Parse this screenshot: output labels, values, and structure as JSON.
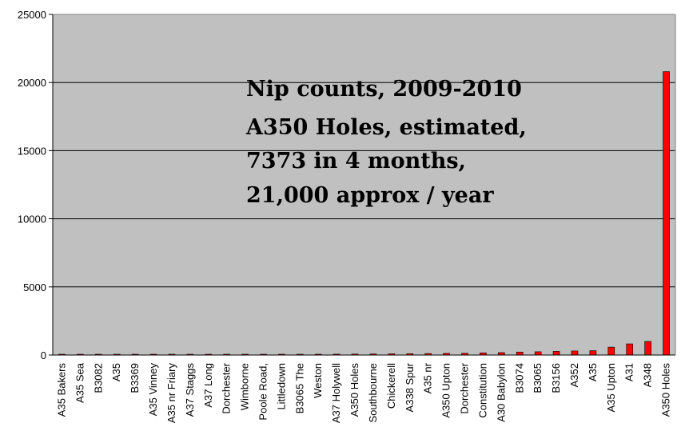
{
  "chart_data": {
    "type": "bar",
    "title": "",
    "xlabel": "",
    "ylabel": "",
    "ylim": [
      0,
      25000
    ],
    "yticks": [
      0,
      5000,
      10000,
      15000,
      20000,
      25000
    ],
    "grid": true,
    "legend": "none",
    "plot_background": "#c0c0c0",
    "bar_color": "#ff0000",
    "categories": [
      "A35 Bakers",
      "A35 Sea",
      "B3082",
      "A35",
      "B3369",
      "A35 Vinney",
      "A35 nr Friary",
      "A37 Staggs",
      "A37 Long",
      "Dorchester",
      "Wimborne",
      "Poole Road,",
      "Littledown",
      "B3065 The",
      "Weston",
      "A37 Holywell",
      "A350 Holes",
      "Southbourne",
      "Chickerell",
      "A338 Spur",
      "A35 nr",
      "A350 Upton",
      "Dorchester",
      "Constitution",
      "A30 Babylon",
      "B3074",
      "B3065",
      "B3156",
      "A352",
      "A35",
      "A35 Upton",
      "A31",
      "A348",
      "A350 Holes"
    ],
    "values": [
      5,
      8,
      10,
      12,
      15,
      18,
      20,
      22,
      25,
      28,
      35,
      45,
      50,
      55,
      60,
      65,
      70,
      80,
      90,
      100,
      110,
      120,
      130,
      160,
      180,
      220,
      240,
      270,
      300,
      320,
      580,
      820,
      1000,
      20800
    ],
    "annotation": [
      "Nip counts, 2009-2010",
      "A350 Holes, estimated,",
      "7373 in 4 months,",
      "21,000 approx / year"
    ]
  }
}
